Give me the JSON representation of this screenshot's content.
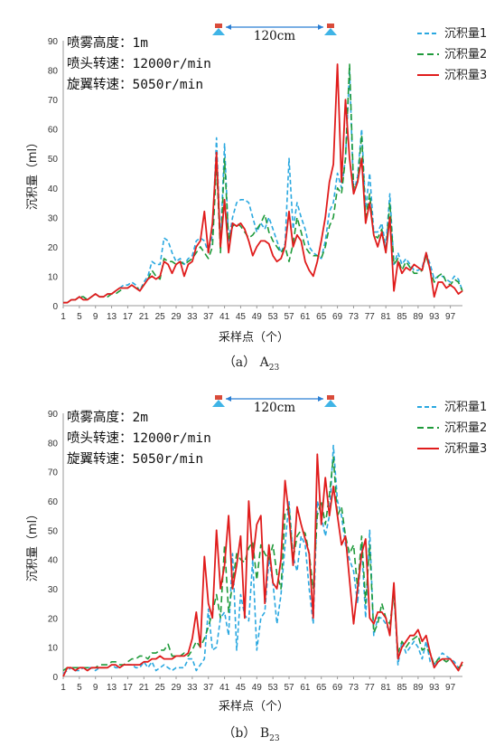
{
  "chart_data": [
    {
      "type": "line",
      "caption": "（a） A",
      "caption_sub": "23",
      "xlabel": "采样点（个）",
      "ylabel": "沉积量（ml）",
      "xlim": [
        1,
        100
      ],
      "ylim": [
        0,
        90
      ],
      "yticks": [
        0,
        10,
        20,
        30,
        40,
        50,
        60,
        70,
        80,
        90
      ],
      "xticks": [
        1,
        5,
        9,
        13,
        17,
        21,
        25,
        29,
        33,
        37,
        41,
        45,
        49,
        53,
        57,
        61,
        65,
        69,
        73,
        77,
        81,
        85,
        89,
        93,
        97
      ],
      "info": [
        "喷雾高度：1m",
        "喷头转速：12000r/min",
        "旋翼转速：5050r/min"
      ],
      "nozzle_distance": "120cm",
      "legend": [
        "沉积量1",
        "沉积量2",
        "沉积量3"
      ],
      "series": [
        {
          "name": "沉积量1",
          "color": "#2aa8e0",
          "dash": "5,3",
          "values": [
            1,
            1,
            2,
            2,
            3,
            3,
            2,
            3,
            4,
            3,
            3,
            4,
            4,
            5,
            6,
            7,
            7,
            8,
            7,
            5,
            8,
            10,
            15,
            14,
            14,
            23,
            22,
            18,
            15,
            16,
            14,
            16,
            17,
            22,
            23,
            22,
            18,
            24,
            57,
            20,
            55,
            22,
            30,
            35,
            36,
            36,
            35,
            30,
            25,
            28,
            26,
            30,
            26,
            22,
            18,
            21,
            50,
            26,
            35,
            30,
            26,
            20,
            18,
            17,
            16,
            22,
            32,
            35,
            45,
            40,
            50,
            80,
            38,
            44,
            60,
            33,
            45,
            25,
            25,
            28,
            20,
            38,
            14,
            18,
            14,
            16,
            14,
            12,
            12,
            13,
            18,
            14,
            9,
            10,
            10,
            9,
            8,
            10,
            9,
            5
          ]
        },
        {
          "name": "沉积量2",
          "color": "#1e9a3a",
          "dash": "7,4",
          "values": [
            1,
            1,
            2,
            2,
            3,
            3,
            2,
            3,
            4,
            3,
            3,
            3,
            4,
            4,
            5,
            6,
            6,
            7,
            6,
            6,
            7,
            9,
            12,
            10,
            9,
            16,
            15,
            15,
            14,
            15,
            14,
            15,
            16,
            18,
            20,
            18,
            16,
            20,
            48,
            18,
            50,
            22,
            27,
            28,
            27,
            25,
            23,
            24,
            26,
            28,
            31,
            25,
            22,
            20,
            18,
            20,
            15,
            21,
            30,
            25,
            20,
            18,
            17,
            17,
            16,
            20,
            27,
            30,
            40,
            38,
            50,
            82,
            40,
            42,
            58,
            30,
            38,
            24,
            23,
            26,
            18,
            35,
            14,
            16,
            12,
            15,
            13,
            11,
            11,
            12,
            17,
            12,
            8,
            10,
            11,
            8,
            7,
            9,
            8,
            5
          ]
        },
        {
          "name": "沉积量3",
          "color": "#e01c1c",
          "dash": "",
          "values": [
            1,
            1,
            2,
            2,
            3,
            2,
            2,
            3,
            4,
            3,
            3,
            4,
            4,
            5,
            6,
            6,
            6,
            7,
            6,
            5,
            7,
            9,
            10,
            9,
            10,
            15,
            14,
            11,
            14,
            15,
            10,
            14,
            15,
            20,
            22,
            32,
            18,
            28,
            52,
            20,
            36,
            18,
            28,
            27,
            28,
            26,
            22,
            17,
            20,
            22,
            22,
            21,
            17,
            15,
            16,
            20,
            32,
            20,
            24,
            22,
            15,
            12,
            10,
            15,
            22,
            30,
            42,
            48,
            82,
            42,
            70,
            50,
            38,
            42,
            50,
            28,
            35,
            24,
            20,
            25,
            18,
            30,
            5,
            15,
            11,
            13,
            12,
            14,
            13,
            12,
            18,
            12,
            3,
            8,
            8,
            6,
            7,
            6,
            4,
            5
          ]
        }
      ]
    },
    {
      "type": "line",
      "caption": "（b） B",
      "caption_sub": "23",
      "xlabel": "采样点（个）",
      "ylabel": "沉积量（ml）",
      "xlim": [
        1,
        100
      ],
      "ylim": [
        0,
        90
      ],
      "yticks": [
        0,
        10,
        20,
        30,
        40,
        50,
        60,
        70,
        80,
        90
      ],
      "xticks": [
        1,
        5,
        9,
        13,
        17,
        21,
        25,
        29,
        33,
        37,
        41,
        45,
        49,
        53,
        57,
        61,
        65,
        69,
        73,
        77,
        81,
        85,
        89,
        93,
        97
      ],
      "info": [
        "喷雾高度：2m",
        "喷头转速：12000r/min",
        "旋翼转速：5050r/min"
      ],
      "nozzle_distance": "120cm",
      "legend": [
        "沉积量1",
        "沉积量2",
        "沉积量3"
      ],
      "series": [
        {
          "name": "沉积量1",
          "color": "#2aa8e0",
          "dash": "5,3",
          "values": [
            1,
            2,
            3,
            2,
            2,
            3,
            3,
            3,
            2,
            3,
            3,
            3,
            4,
            3,
            3,
            4,
            4,
            4,
            3,
            3,
            5,
            3,
            5,
            2,
            3,
            4,
            3,
            2,
            3,
            3,
            3,
            6,
            6,
            2,
            4,
            6,
            23,
            9,
            10,
            20,
            22,
            14,
            42,
            9,
            28,
            21,
            19,
            40,
            9,
            20,
            22,
            40,
            32,
            18,
            28,
            45,
            60,
            41,
            36,
            48,
            45,
            30,
            18,
            60,
            55,
            48,
            55,
            79,
            60,
            55,
            45,
            40,
            36,
            25,
            45,
            20,
            50,
            14,
            20,
            20,
            18,
            15,
            30,
            4,
            12,
            8,
            10,
            12,
            10,
            6,
            12,
            5,
            4,
            6,
            8,
            7,
            6,
            5,
            3,
            2
          ]
        },
        {
          "name": "沉积量2",
          "color": "#1e9a3a",
          "dash": "7,4",
          "values": [
            2,
            3,
            3,
            3,
            3,
            3,
            3,
            3,
            3,
            4,
            4,
            4,
            5,
            5,
            4,
            4,
            5,
            6,
            6,
            7,
            7,
            6,
            8,
            8,
            9,
            9,
            11,
            7,
            7,
            7,
            8,
            7,
            9,
            12,
            10,
            13,
            17,
            22,
            28,
            20,
            45,
            22,
            32,
            42,
            40,
            39,
            44,
            46,
            33,
            45,
            42,
            40,
            45,
            35,
            30,
            56,
            58,
            40,
            48,
            50,
            49,
            42,
            30,
            55,
            60,
            52,
            62,
            75,
            55,
            58,
            48,
            42,
            45,
            30,
            48,
            25,
            45,
            15,
            18,
            25,
            20,
            18,
            28,
            8,
            12,
            10,
            12,
            13,
            14,
            9,
            10,
            8,
            4,
            6,
            6,
            5,
            6,
            4,
            3,
            4
          ]
        },
        {
          "name": "沉积量3",
          "color": "#e01c1c",
          "dash": "",
          "values": [
            0,
            3,
            3,
            2,
            3,
            3,
            2,
            3,
            3,
            3,
            3,
            3,
            4,
            4,
            3,
            4,
            4,
            4,
            4,
            4,
            5,
            5,
            6,
            6,
            7,
            6,
            6,
            6,
            7,
            7,
            7,
            8,
            13,
            22,
            10,
            41,
            25,
            20,
            50,
            30,
            38,
            55,
            30,
            38,
            48,
            20,
            60,
            40,
            52,
            55,
            25,
            45,
            32,
            30,
            40,
            67,
            55,
            38,
            58,
            52,
            47,
            42,
            20,
            76,
            52,
            68,
            55,
            65,
            55,
            45,
            48,
            33,
            18,
            30,
            42,
            47,
            20,
            18,
            22,
            22,
            20,
            14,
            32,
            6,
            10,
            12,
            14,
            14,
            16,
            12,
            14,
            8,
            3,
            5,
            6,
            6,
            6,
            4,
            2,
            5
          ]
        }
      ]
    }
  ]
}
